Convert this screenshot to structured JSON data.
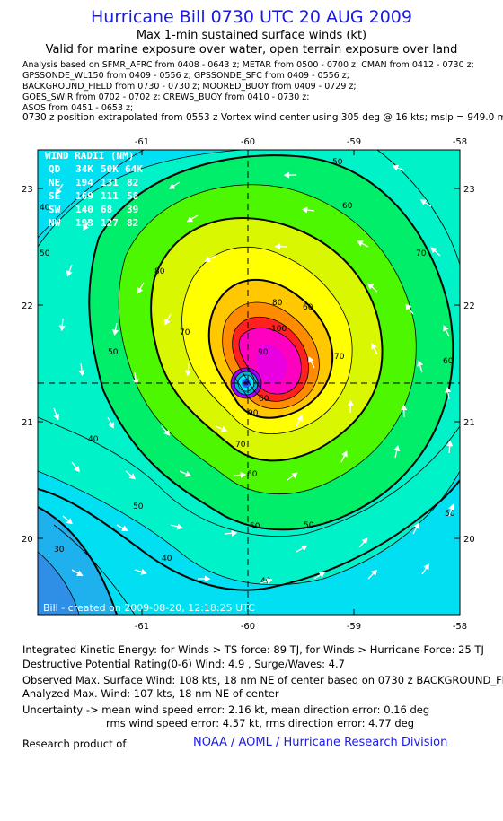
{
  "header": {
    "title": "Hurricane Bill 0730 UTC 20 AUG 2009",
    "subtitle": "Max 1-min sustained surface winds (kt)",
    "validity": "Valid for marine exposure over water, open terrain exposure over land"
  },
  "sources": [
    "Analysis based on   SFMR_AFRC from 0408 - 0643 z;  METAR from 0500 - 0700 z;  CMAN from 0412 - 0730 z;",
    "GPSSONDE_WL150 from 0409 - 0556 z;  GPSSONDE_SFC from 0409 - 0556 z;",
    "BACKGROUND_FIELD from 0730 - 0730 z;  MOORED_BUOY from 0409 - 0729 z;",
    "GOES_SWIR from 0702 - 0702 z;  CREWS_BUOY from 0410 - 0730 z;",
    "ASOS from 0451 - 0653 z;"
  ],
  "position_line": "0730 z position extrapolated from 0553 z Vortex wind center using 305 deg @ 16 kts; mslp = 949.0 mb",
  "map": {
    "lon_ticks": [
      "-61",
      "-60",
      "-59",
      "-58"
    ],
    "lat_ticks": [
      "23",
      "22",
      "21",
      "20"
    ],
    "lon_range": [
      -61.98,
      -58
    ],
    "lat_range": [
      19.35,
      23.3
    ],
    "center": {
      "lon": -60.0,
      "lat": 21.32
    },
    "contour_labels": [
      "50",
      "60",
      "80",
      "70",
      "60",
      "50",
      "70",
      "90",
      "100",
      "90",
      "80",
      "70",
      "60",
      "50",
      "50",
      "60",
      "70",
      "60",
      "50",
      "50",
      "40",
      "40",
      "40",
      "50",
      "40",
      "30"
    ],
    "wind_radii": {
      "title": "WIND RADII (NM)",
      "header": [
        "QD",
        "34K",
        "50K",
        "64K"
      ],
      "rows": [
        [
          "NE",
          "194",
          "131",
          "82"
        ],
        [
          "SE",
          "169",
          "111",
          "58"
        ],
        [
          "SW",
          "140",
          "68",
          "39"
        ],
        [
          "NW",
          "193",
          "127",
          "82"
        ]
      ]
    },
    "footer_text": "Bill - created on 2009-08-20, 12:18:25 UTC"
  },
  "stats": {
    "ike": "Integrated Kinetic Energy:  for Winds > TS force: 89 TJ,  for Winds > Hurricane Force: 25 TJ",
    "dpr": "Destructive Potential Rating(0-6)   Wind: 4.9 , Surge/Waves: 4.7",
    "obs_max": "Observed Max. Surface Wind: 108 kts, 18 nm NE of center based on 0730 z BACKGROUND_FIELD",
    "analyzed_max": "Analyzed Max. Wind: 107 kts, 18 nm NE of center",
    "uncertainty1": "Uncertainty -> mean wind speed error: 2.16 kt,   mean direction error: 0.16 deg",
    "uncertainty2": "rms wind speed error: 4.57 kt,   rms direction error: 4.77 deg"
  },
  "footer": {
    "research": "Research product of",
    "org": "NOAA / AOML / Hurricane Research Division"
  }
}
